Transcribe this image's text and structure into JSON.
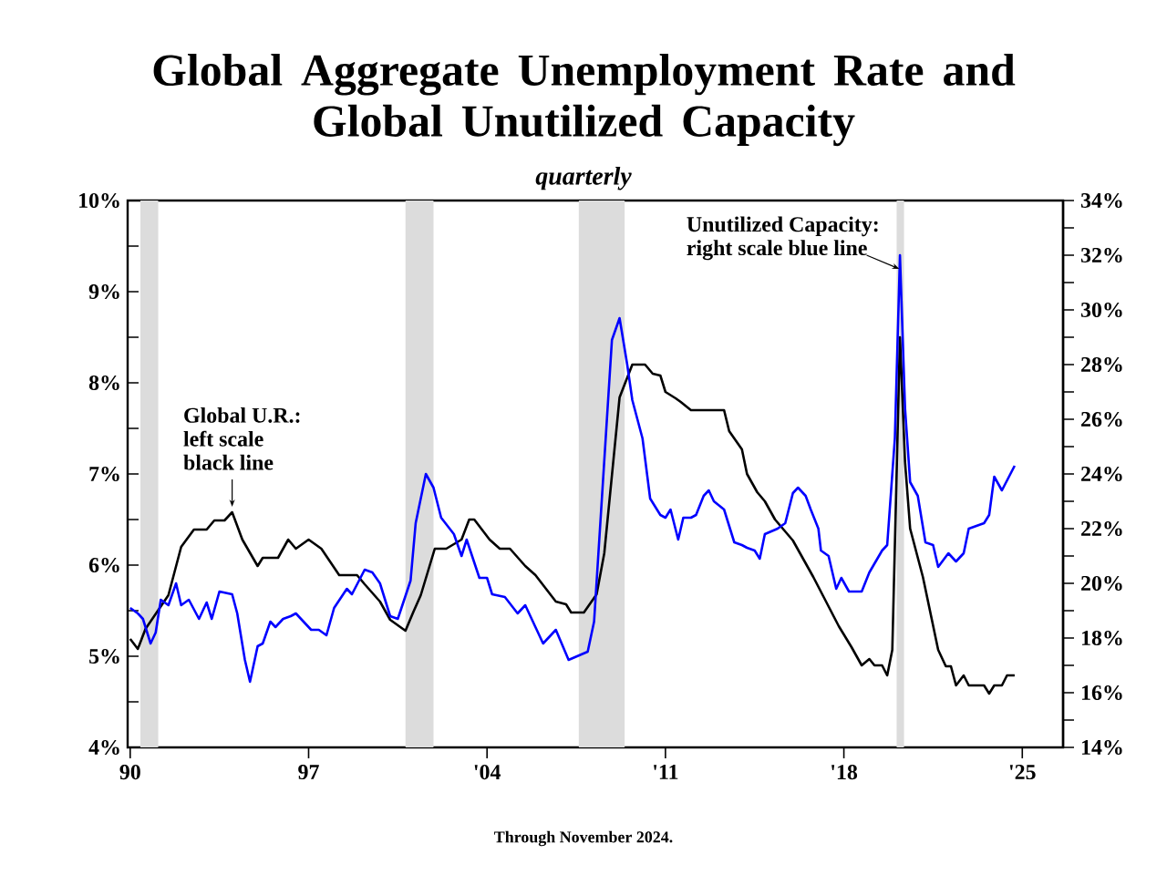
{
  "chart_data": {
    "type": "line",
    "title": "Global Aggregate Unemployment Rate and Global Unutilized Capacity",
    "subtitle": "quarterly",
    "xlim": [
      1989.9,
      2026.6
    ],
    "xticks": [
      {
        "value": 1990,
        "label": "90"
      },
      {
        "value": 1997,
        "label": "97"
      },
      {
        "value": 2004,
        "label": "'04"
      },
      {
        "value": 2011,
        "label": "'11"
      },
      {
        "value": 2018,
        "label": "'18"
      },
      {
        "value": 2025,
        "label": "'25"
      }
    ],
    "ylim": [
      4,
      10
    ],
    "yticks": [
      {
        "value": 4,
        "label": "4%"
      },
      {
        "value": 4.5,
        "label": null
      },
      {
        "value": 5,
        "label": "5%"
      },
      {
        "value": 5.5,
        "label": null
      },
      {
        "value": 6,
        "label": "6%"
      },
      {
        "value": 6.5,
        "label": null
      },
      {
        "value": 7,
        "label": "7%"
      },
      {
        "value": 7.5,
        "label": null
      },
      {
        "value": 8,
        "label": "8%"
      },
      {
        "value": 8.5,
        "label": null
      },
      {
        "value": 9,
        "label": "9%"
      },
      {
        "value": 9.5,
        "label": null
      },
      {
        "value": 10,
        "label": "10%"
      }
    ],
    "y2lim": [
      14,
      34
    ],
    "y2ticks": [
      {
        "value": 14,
        "label": "14%"
      },
      {
        "value": 15,
        "label": null
      },
      {
        "value": 16,
        "label": "16%"
      },
      {
        "value": 17,
        "label": null
      },
      {
        "value": 18,
        "label": "18%"
      },
      {
        "value": 19,
        "label": null
      },
      {
        "value": 20,
        "label": "20%"
      },
      {
        "value": 21,
        "label": null
      },
      {
        "value": 22,
        "label": "22%"
      },
      {
        "value": 23,
        "label": null
      },
      {
        "value": 24,
        "label": "24%"
      },
      {
        "value": 25,
        "label": null
      },
      {
        "value": 26,
        "label": "26%"
      },
      {
        "value": 27,
        "label": null
      },
      {
        "value": 28,
        "label": "28%"
      },
      {
        "value": 29,
        "label": null
      },
      {
        "value": 30,
        "label": "30%"
      },
      {
        "value": 31,
        "label": null
      },
      {
        "value": 32,
        "label": "32%"
      },
      {
        "value": 33,
        "label": null
      },
      {
        "value": 34,
        "label": "34%"
      }
    ],
    "bands": [
      {
        "axis": "x",
        "from": 1990.4,
        "to": 1991.1,
        "color": "#dcdcdc"
      },
      {
        "axis": "x",
        "from": 2000.8,
        "to": 2001.9,
        "color": "#dcdcdc"
      },
      {
        "axis": "x",
        "from": 2007.6,
        "to": 2009.4,
        "color": "#dcdcdc"
      },
      {
        "axis": "x",
        "from": 2020.07,
        "to": 2020.36,
        "color": "#dcdcdc"
      }
    ],
    "series": [
      {
        "color": "#000000",
        "axis": "y",
        "x": [
          1990.0,
          1990.3,
          1990.6,
          1991.5,
          1992.0,
          1992.5,
          1993.0,
          1993.3,
          1993.7,
          1994.0,
          1994.4,
          1995.0,
          1995.2,
          1995.8,
          1996.2,
          1996.5,
          1997.0,
          1997.5,
          1998.2,
          1998.9,
          1999.2,
          1999.8,
          2000.2,
          2000.8,
          2001.1,
          2001.4,
          2001.95,
          2002.4,
          2003.0,
          2003.3,
          2003.5,
          2004.1,
          2004.5,
          2004.9,
          2005.5,
          2005.9,
          2006.7,
          2007.1,
          2007.3,
          2007.8,
          2008.3,
          2008.6,
          2009.2,
          2009.7,
          2010.2,
          2010.5,
          2010.8,
          2011.0,
          2011.4,
          2011.6,
          2012.0,
          2013.3,
          2013.5,
          2014.0,
          2014.2,
          2014.6,
          2014.9,
          2015.3,
          2016.0,
          2016.8,
          2017.3,
          2017.8,
          2018.3,
          2018.7,
          2019.0,
          2019.2,
          2019.5,
          2019.7,
          2019.9,
          2020.2,
          2020.4,
          2020.6,
          2021.1,
          2021.7,
          2022.0,
          2022.2,
          2022.4,
          2022.7,
          2022.9,
          2023.5,
          2023.7,
          2023.9,
          2024.2,
          2024.4,
          2024.7
        ],
        "values": [
          5.19,
          5.08,
          5.3,
          5.67,
          6.2,
          6.39,
          6.39,
          6.49,
          6.49,
          6.58,
          6.28,
          5.99,
          6.08,
          6.08,
          6.28,
          6.18,
          6.28,
          6.18,
          5.89,
          5.89,
          5.79,
          5.6,
          5.4,
          5.28,
          5.48,
          5.67,
          6.18,
          6.18,
          6.28,
          6.5,
          6.5,
          6.28,
          6.18,
          6.18,
          5.99,
          5.89,
          5.6,
          5.57,
          5.48,
          5.48,
          5.68,
          6.13,
          7.84,
          8.2,
          8.2,
          8.1,
          8.08,
          7.9,
          7.83,
          7.79,
          7.7,
          7.7,
          7.47,
          7.27,
          7.0,
          6.8,
          6.7,
          6.5,
          6.27,
          5.87,
          5.6,
          5.33,
          5.1,
          4.9,
          4.97,
          4.9,
          4.9,
          4.79,
          5.07,
          8.5,
          7.13,
          6.4,
          5.87,
          5.07,
          4.89,
          4.89,
          4.68,
          4.79,
          4.68,
          4.68,
          4.59,
          4.68,
          4.68,
          4.79,
          4.79
        ]
      },
      {
        "color": "#0000ff",
        "axis": "y2",
        "x": [
          1990.0,
          1990.3,
          1990.5,
          1990.8,
          1991.0,
          1991.2,
          1991.5,
          1991.8,
          1992.0,
          1992.3,
          1992.7,
          1993.0,
          1993.2,
          1993.5,
          1994.0,
          1994.2,
          1994.5,
          1994.7,
          1995.0,
          1995.2,
          1995.5,
          1995.7,
          1996.0,
          1996.3,
          1996.5,
          1997.1,
          1997.4,
          1997.7,
          1998.0,
          1998.5,
          1998.7,
          1999.2,
          1999.5,
          1999.8,
          2000.2,
          2000.5,
          2001.0,
          2001.2,
          2001.6,
          2001.9,
          2002.2,
          2002.7,
          2003.0,
          2003.2,
          2003.7,
          2004.0,
          2004.2,
          2004.7,
          2005.2,
          2005.5,
          2006.2,
          2006.7,
          2007.2,
          2007.95,
          2008.2,
          2008.9,
          2009.2,
          2009.5,
          2009.7,
          2010.1,
          2010.4,
          2010.8,
          2011.0,
          2011.2,
          2011.5,
          2011.7,
          2012.0,
          2012.2,
          2012.5,
          2012.7,
          2012.9,
          2013.3,
          2013.7,
          2014.0,
          2014.2,
          2014.5,
          2014.7,
          2014.9,
          2015.4,
          2015.7,
          2016.0,
          2016.2,
          2016.5,
          2016.7,
          2017.0,
          2017.1,
          2017.4,
          2017.7,
          2017.9,
          2018.2,
          2018.7,
          2019.0,
          2019.5,
          2019.7,
          2020.0,
          2020.2,
          2020.4,
          2020.6,
          2020.9,
          2021.2,
          2021.5,
          2021.7,
          2022.1,
          2022.4,
          2022.7,
          2022.9,
          2023.5,
          2023.7,
          2023.9,
          2024.2,
          2024.7
        ],
        "values": [
          19.1,
          18.9,
          18.7,
          17.8,
          18.2,
          19.4,
          19.2,
          20.0,
          19.2,
          19.4,
          18.7,
          19.3,
          18.7,
          19.7,
          19.6,
          18.9,
          17.2,
          16.4,
          17.7,
          17.8,
          18.6,
          18.4,
          18.7,
          18.8,
          18.9,
          18.3,
          18.3,
          18.1,
          19.1,
          19.8,
          19.6,
          20.5,
          20.4,
          20.0,
          18.8,
          18.7,
          20.1,
          22.2,
          24.0,
          23.5,
          22.4,
          21.8,
          21.0,
          21.6,
          20.2,
          20.2,
          19.6,
          19.5,
          18.9,
          19.2,
          17.8,
          18.3,
          17.2,
          17.5,
          18.6,
          28.9,
          29.7,
          28.0,
          26.7,
          25.3,
          23.1,
          22.5,
          22.4,
          22.7,
          21.6,
          22.4,
          22.4,
          22.5,
          23.2,
          23.4,
          23.0,
          22.7,
          21.5,
          21.4,
          21.3,
          21.2,
          20.9,
          21.8,
          22.0,
          22.2,
          23.3,
          23.5,
          23.2,
          22.7,
          22.0,
          21.2,
          21.0,
          19.8,
          20.2,
          19.7,
          19.7,
          20.4,
          21.2,
          21.4,
          25.3,
          32.0,
          26.4,
          23.7,
          23.2,
          21.5,
          21.4,
          20.6,
          21.1,
          20.8,
          21.1,
          22.0,
          22.2,
          22.5,
          23.9,
          23.4,
          24.3
        ]
      }
    ],
    "annotations": [
      {
        "text": "Global U.R.: left scale black line",
        "x": 1994.0,
        "y": 6.58
      },
      "Unutilized Capacity: right scale blue line",
      "Through November 2024."
    ]
  }
}
